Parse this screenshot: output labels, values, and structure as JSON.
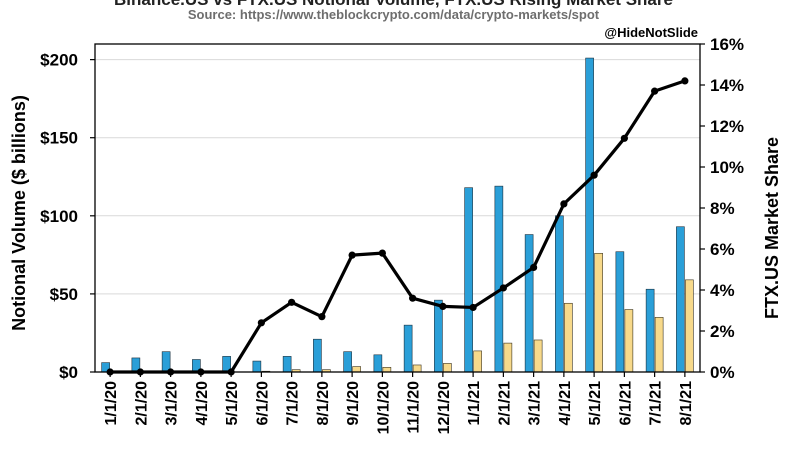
{
  "chart_data": {
    "type": "bar+line",
    "title": "Binance.US vs FTX.US Notional Volume, FTX.US Rising Market Share",
    "subtitle": "Source: https://www.theblockcrypto.com/data/crypto-markets/spot",
    "credit": "@HideNotSlide",
    "categories": [
      "1/1/20",
      "2/1/20",
      "3/1/20",
      "4/1/20",
      "5/1/20",
      "6/1/20",
      "7/1/20",
      "8/1/20",
      "9/1/20",
      "10/1/20",
      "11/1/20",
      "12/1/20",
      "1/1/21",
      "2/1/21",
      "3/1/21",
      "4/1/21",
      "5/1/21",
      "6/1/21",
      "7/1/21",
      "8/1/21"
    ],
    "series": [
      {
        "axis": "left",
        "type": "bar",
        "color": "#2a9fd8",
        "values": [
          6,
          9,
          13,
          8,
          10,
          7,
          10,
          21,
          13,
          11,
          30,
          46,
          118,
          119,
          88,
          100,
          201,
          77,
          53,
          93
        ]
      },
      {
        "axis": "left",
        "type": "bar",
        "color": "#f7d98a",
        "values": [
          0,
          0,
          0,
          0,
          0,
          0.5,
          1.5,
          1.5,
          3.5,
          3,
          4.5,
          5.5,
          13.5,
          18.5,
          20.5,
          44,
          76,
          40,
          35,
          59
        ]
      },
      {
        "axis": "right",
        "type": "line",
        "color": "#000000",
        "values": [
          0,
          0,
          0,
          0,
          0,
          2.4,
          3.4,
          2.7,
          5.7,
          5.8,
          3.6,
          3.2,
          3.15,
          4.1,
          5.1,
          8.2,
          9.6,
          11.4,
          13.7,
          14.2
        ]
      }
    ],
    "ylabel": "Notional Volume ($ billions)",
    "ylim": [
      0,
      210
    ],
    "yticks": [
      0,
      50,
      100,
      150,
      200
    ],
    "yticklabels": [
      "$0",
      "$50",
      "$100",
      "$150",
      "$200"
    ],
    "y2label": "FTX.US Market Share",
    "y2lim": [
      0,
      16
    ],
    "y2ticks": [
      0,
      2,
      4,
      6,
      8,
      10,
      12,
      14,
      16
    ],
    "y2ticklabels": [
      "0%",
      "2%",
      "4%",
      "6%",
      "8%",
      "10%",
      "12%",
      "14%",
      "16%"
    ],
    "grid": "horizontal"
  }
}
